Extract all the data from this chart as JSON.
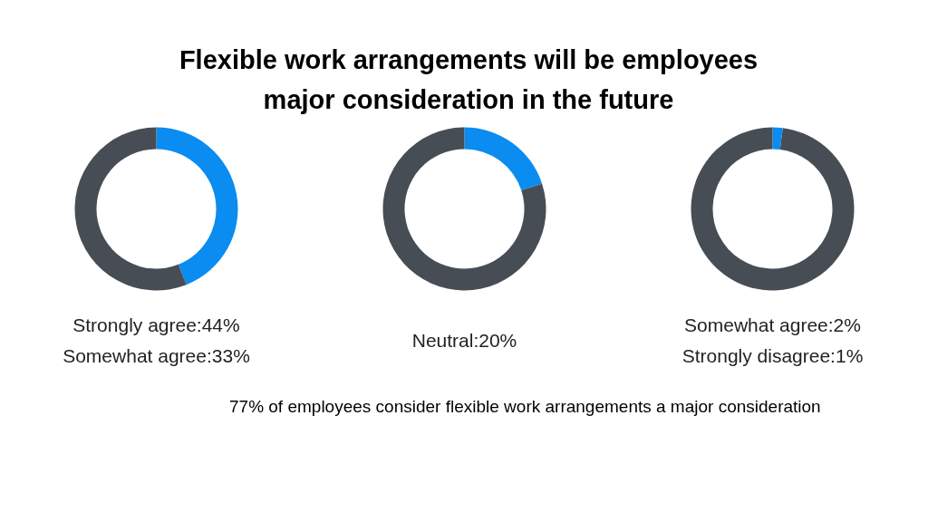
{
  "chart_data": [
    {
      "type": "donut",
      "title": "Flexible work arrangements will be employees major consideration in the future",
      "categories": [
        null,
        null
      ],
      "values": [
        44,
        56
      ],
      "colors": [
        "#0a8cf0",
        "#474d55"
      ],
      "annotations": [
        "Strongly agree:44%",
        "Somewhat agree:33%"
      ]
    },
    {
      "type": "donut",
      "categories": [
        null,
        null
      ],
      "values": [
        20,
        80
      ],
      "colors": [
        "#0a8cf0",
        "#474d55"
      ],
      "annotations": [
        "Neutral:20%"
      ]
    },
    {
      "type": "donut",
      "categories": [
        null,
        null
      ],
      "values": [
        2,
        98
      ],
      "colors": [
        "#0a8cf0",
        "#474d55"
      ],
      "annotations": [
        "Somewhat agree:2%",
        "Strongly disagree:1%",
        "77% of employees consider flexible work arrangements a major consideration"
      ]
    }
  ]
}
